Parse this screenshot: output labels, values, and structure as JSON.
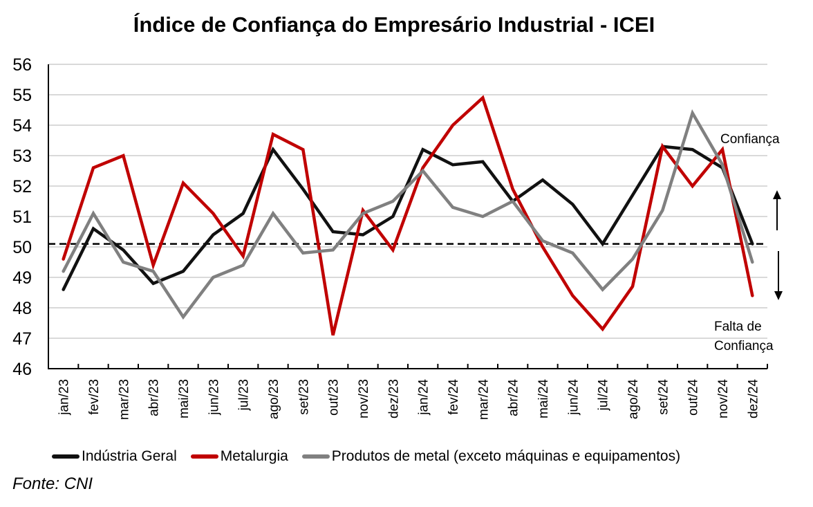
{
  "chart_data": {
    "type": "line",
    "title": "Índice de Confiança do Empresário Industrial - ICEI",
    "xlabel": "",
    "ylabel": "",
    "ylim": [
      46,
      56
    ],
    "yticks": [
      46,
      47,
      48,
      49,
      50,
      51,
      52,
      53,
      54,
      55,
      56
    ],
    "grid": true,
    "legend_position": "bottom",
    "categories": [
      "jan/23",
      "fev/23",
      "mar/23",
      "abr/23",
      "mai/23",
      "jun/23",
      "jul/23",
      "ago/23",
      "set/23",
      "out/23",
      "nov/23",
      "dez/23",
      "jan/24",
      "fev/24",
      "mar/24",
      "abr/24",
      "mai/24",
      "jun/24",
      "jul/24",
      "ago/24",
      "set/24",
      "out/24",
      "nov/24",
      "dez/24"
    ],
    "series": [
      {
        "name": "Indústria Geral",
        "color": "#111111",
        "values": [
          48.6,
          50.6,
          49.9,
          48.8,
          49.2,
          50.4,
          51.1,
          53.2,
          51.9,
          50.5,
          50.4,
          51.0,
          53.2,
          52.7,
          52.8,
          51.5,
          52.2,
          51.4,
          50.1,
          51.7,
          53.3,
          53.2,
          52.6,
          50.1
        ]
      },
      {
        "name": "Metalurgia",
        "color": "#C00000",
        "values": [
          49.6,
          52.6,
          53.0,
          49.4,
          52.1,
          51.1,
          49.7,
          53.7,
          53.2,
          47.1,
          51.2,
          49.9,
          52.6,
          54.0,
          54.9,
          51.9,
          50.0,
          48.4,
          47.3,
          48.7,
          53.3,
          52.0,
          53.2,
          48.4
        ]
      },
      {
        "name": "Produtos de metal (exceto máquinas e equipamentos)",
        "color": "#808080",
        "values": [
          49.2,
          51.1,
          49.5,
          49.2,
          47.7,
          49.0,
          49.4,
          51.1,
          49.8,
          49.9,
          51.1,
          51.5,
          52.5,
          51.3,
          51.0,
          51.5,
          50.2,
          49.8,
          48.6,
          49.6,
          51.2,
          54.4,
          52.7,
          49.5
        ]
      }
    ],
    "reference_line": {
      "value": 50.1,
      "style": "dashed"
    },
    "annotations": {
      "above": "Confiança",
      "below_line1": "Falta de",
      "below_line2": "Confiança"
    }
  },
  "source": "Fonte: CNI"
}
